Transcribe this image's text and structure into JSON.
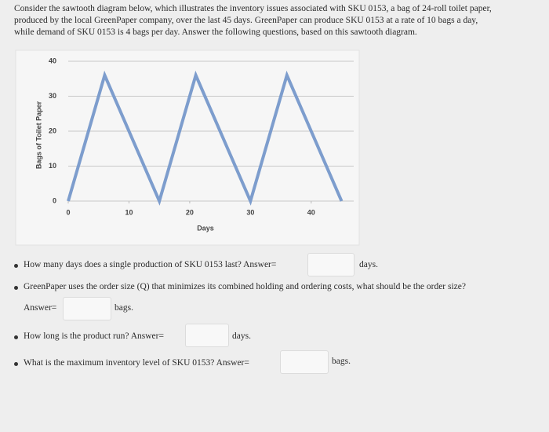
{
  "intro": [
    "Consider the sawtooth diagram below, which illustrates the inventory issues associated with SKU 0153, a bag of 24-roll toilet paper,",
    "produced by the local GreenPaper company, over the last 45 days. GreenPaper can produce SKU 0153 at a rate of 10 bags a day,",
    "while demand of SKU 0153 is 4 bags per day. Answer the following questions, based on this sawtooth diagram."
  ],
  "chart_data": {
    "type": "line",
    "x_label": "Days",
    "y_label": "Bags of Toilet Paper",
    "x": [
      0,
      6,
      15,
      21,
      30,
      36,
      45
    ],
    "values": [
      0,
      36,
      0,
      36,
      0,
      36,
      0
    ],
    "color": "#7d9dcd",
    "xlim": [
      0,
      47
    ],
    "xticks": [
      0,
      10,
      20,
      30,
      40
    ],
    "ylim": [
      0,
      40
    ],
    "yticks": [
      0,
      10,
      20,
      30,
      40
    ],
    "grid": true
  },
  "questions": [
    {
      "text": "How many days does a single production of SKU 0153 last? Answer=",
      "unit": "days."
    },
    {
      "text": "GreenPaper uses the order size (Q) that minimizes its combined holding and ordering costs, what should be the order size?",
      "answer_prefix": "Answer=",
      "unit": "bags."
    },
    {
      "text": "How long is the product run? Answer=",
      "unit": "days."
    },
    {
      "text": "What is the maximum inventory level of SKU 0153? Answer=",
      "unit": "bags."
    }
  ]
}
